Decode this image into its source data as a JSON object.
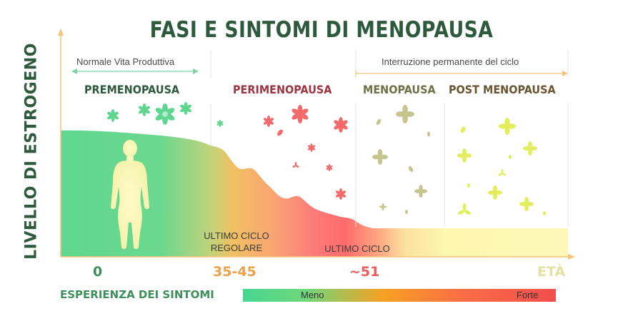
{
  "title": "FASI E SINTOMI DI MENOPAUSA",
  "y_axis_label": "LIVELLO DI ESTROGENO",
  "ranges": {
    "normal": "Normale Vita Produttiva",
    "interruption": "Interruzione permanente del ciclo"
  },
  "phases": [
    {
      "label": "PREMENOPAUSA",
      "color": "#2d5a3c"
    },
    {
      "label": "PERIMENOPAUSA",
      "color": "#9c3442"
    },
    {
      "label": "MENOPAUSA",
      "color": "#6e7045"
    },
    {
      "label": "POST MENOPAUSA",
      "color": "#6b5430"
    }
  ],
  "markers": {
    "last_regular_cycle": "ULTIMO CICLO\nREGOLARE",
    "last_cycle": "ULTIMO CICLO"
  },
  "ages": [
    {
      "label": "0",
      "color": "#3e8f5c"
    },
    {
      "label": "35-45",
      "color": "#f0a046"
    },
    {
      "label": "~51",
      "color": "#f0585a"
    },
    {
      "label": "ETÀ",
      "color": "#e6e0a0"
    }
  ],
  "symptom_scale": {
    "label": "ESPERIENZA DEI SINTOMI",
    "low": "Meno",
    "high": "Forte"
  },
  "colors": {
    "premenopause_green": "#5fd68f",
    "perimenopause_red": "#ff6b6b",
    "menopause_yellow": "#fdf7b0",
    "axis_orange": "#f7c27a"
  },
  "icons": [
    "flower-icon",
    "woman-silhouette-icon"
  ]
}
